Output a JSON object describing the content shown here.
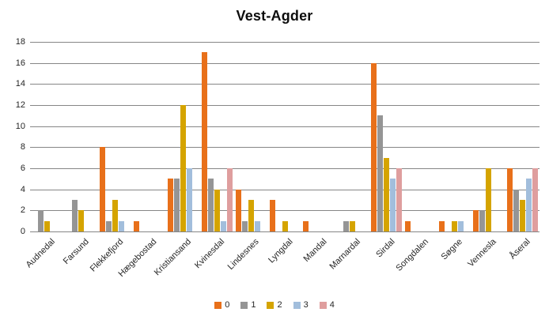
{
  "title": "Vest-Agder",
  "chart_data": {
    "type": "bar",
    "title": "Vest-Agder",
    "xlabel": "",
    "ylabel": "",
    "ylim": [
      0,
      18
    ],
    "ytick_step": 2,
    "grid": true,
    "legend_position": "bottom",
    "categories": [
      "Audnedal",
      "Farsund",
      "Flekkefjord",
      "Hægebostad",
      "Kristiansand",
      "Kvinesdal",
      "Lindesnes",
      "Lyngdal",
      "Mandal",
      "Marnardal",
      "Sirdal",
      "Songdalen",
      "Søgne",
      "Vennesla",
      "Åseral"
    ],
    "series": [
      {
        "name": "0",
        "color": "#E8701A",
        "values": [
          0,
          0,
          8,
          1,
          5,
          17,
          4,
          3,
          1,
          0,
          16,
          1,
          1,
          2,
          6
        ]
      },
      {
        "name": "1",
        "color": "#959595",
        "values": [
          2,
          3,
          1,
          0,
          5,
          5,
          1,
          0,
          0,
          1,
          11,
          0,
          0,
          2,
          4
        ]
      },
      {
        "name": "2",
        "color": "#D5A400",
        "values": [
          1,
          2,
          3,
          0,
          12,
          4,
          3,
          1,
          0,
          1,
          7,
          0,
          1,
          6,
          3
        ]
      },
      {
        "name": "3",
        "color": "#A2BEDC",
        "values": [
          0,
          0,
          1,
          0,
          6,
          1,
          1,
          0,
          0,
          0,
          5,
          0,
          1,
          0,
          5
        ]
      },
      {
        "name": "4",
        "color": "#DF9E9E",
        "values": [
          0,
          0,
          0,
          0,
          0,
          6,
          0,
          0,
          0,
          0,
          6,
          0,
          0,
          0,
          6
        ]
      }
    ],
    "colors": {
      "grid": "#868686",
      "axis_text": "#262626",
      "title_text": "#0d0d0d"
    }
  }
}
